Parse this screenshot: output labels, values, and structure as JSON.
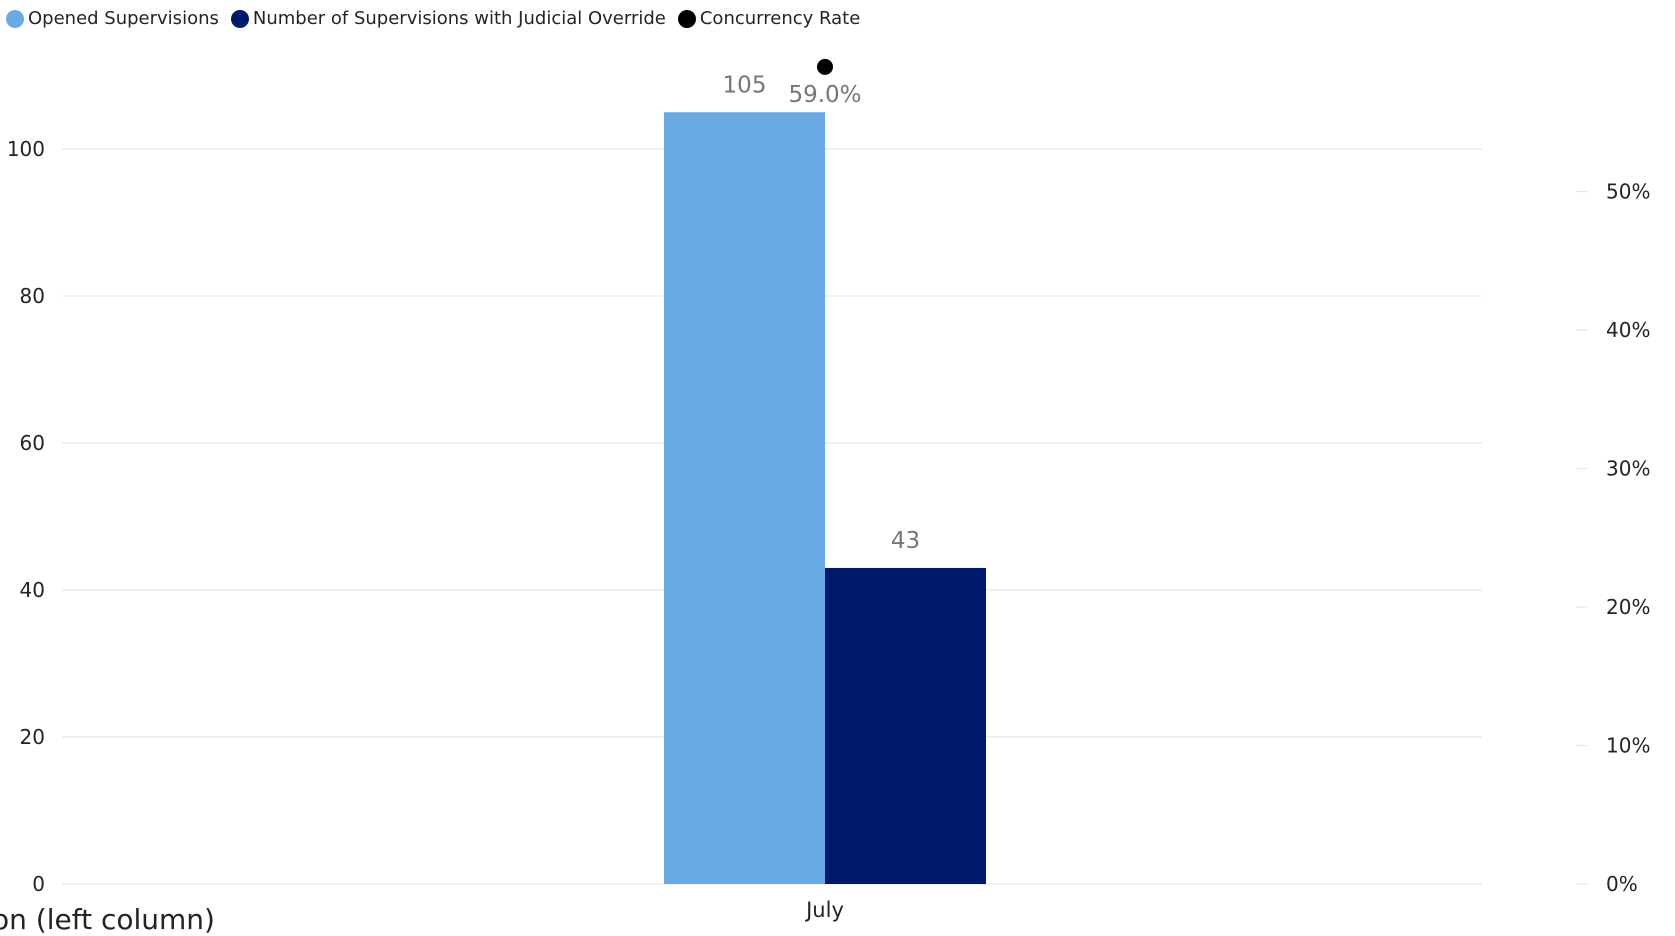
{
  "legend": [
    {
      "label": "Opened Supervisions",
      "color": "#6aaae4"
    },
    {
      "label": "Number of Supervisions with Judicial Override",
      "color": "#001a6b"
    },
    {
      "label": "Concurrency Rate",
      "color": "#000000"
    }
  ],
  "partial_caption": "on (left column)",
  "chart_data": {
    "type": "bar",
    "categories": [
      "July"
    ],
    "series": [
      {
        "name": "Opened Supervisions",
        "values": [
          105
        ],
        "color": "#6aaae4",
        "axis": "left",
        "labels": [
          "105"
        ]
      },
      {
        "name": "Number of Supervisions with Judicial Override",
        "values": [
          43
        ],
        "color": "#001a6b",
        "axis": "left",
        "labels": [
          "43"
        ]
      },
      {
        "name": "Concurrency Rate",
        "type": "line",
        "values": [
          59.0
        ],
        "color": "#000000",
        "axis": "right",
        "labels": [
          "59.0%"
        ]
      }
    ],
    "left_axis": {
      "ticks": [
        0,
        20,
        40,
        60,
        80,
        100
      ],
      "tick_labels": [
        "0",
        "20",
        "40",
        "60",
        "80",
        "100"
      ],
      "range": [
        0,
        105
      ]
    },
    "right_axis": {
      "ticks": [
        0,
        10,
        20,
        30,
        40,
        50
      ],
      "tick_labels": [
        "0%",
        "10%",
        "20%",
        "30%",
        "40%",
        "50%"
      ],
      "range": [
        0,
        59
      ]
    },
    "grid": true,
    "legend_position": "top-left"
  }
}
